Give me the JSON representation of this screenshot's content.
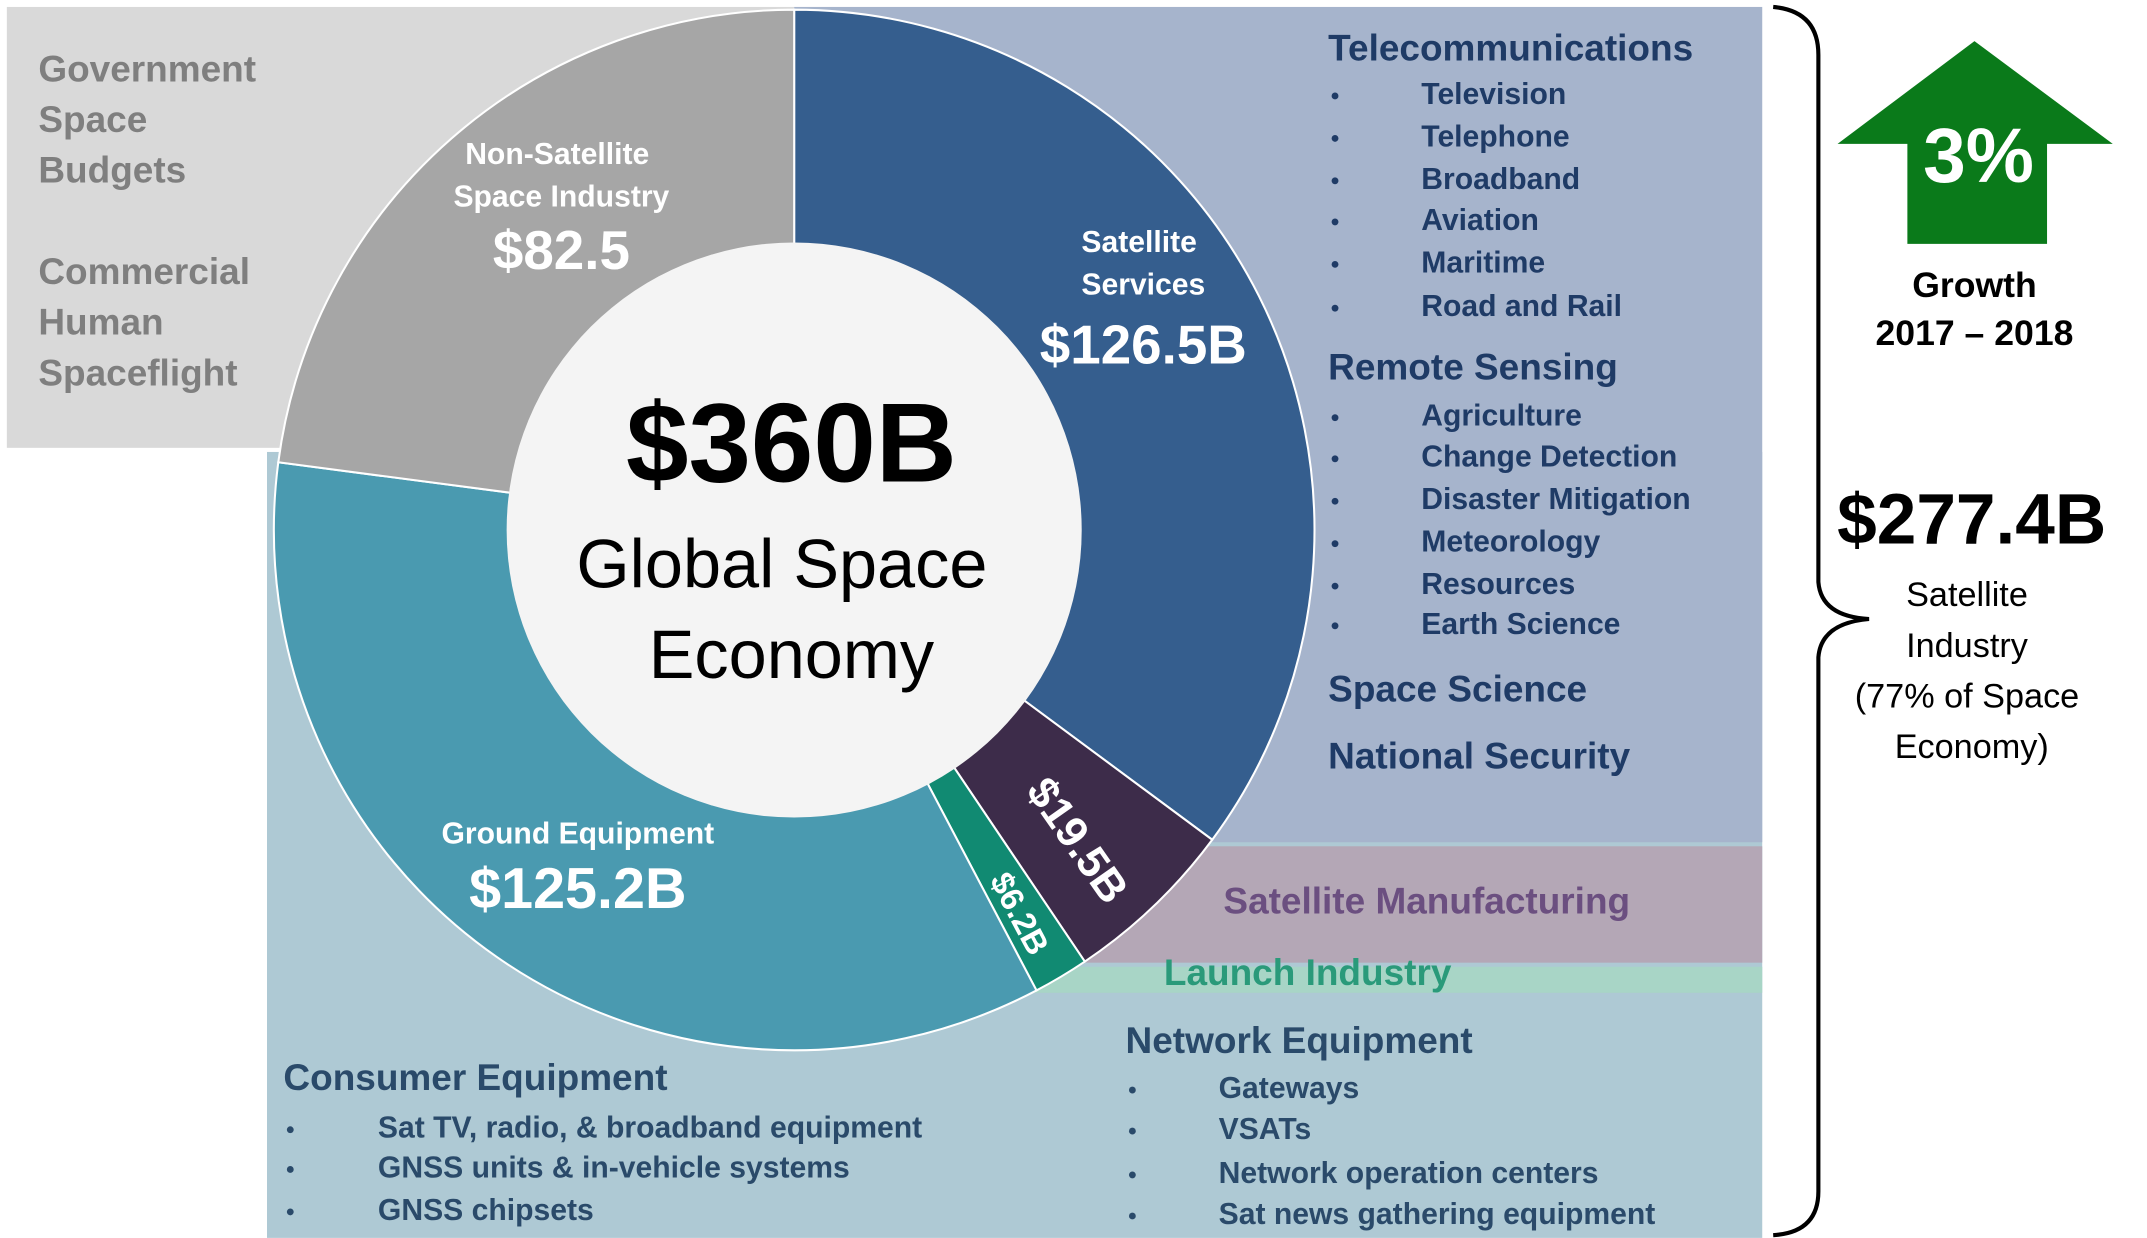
{
  "chart_data": {
    "type": "pie",
    "center_value": "$360B",
    "center_label": "Global Space Economy",
    "categories": [
      "Satellite Services",
      "Satellite Manufacturing",
      "Launch Industry",
      "Ground Equipment",
      "Non-Satellite Space Industry"
    ],
    "values": [
      126.5,
      19.5,
      6.2,
      125.2,
      82.5
    ],
    "value_labels": [
      "$126.5B",
      "$19.5B",
      "$6.2B",
      "$125.2B",
      "$82.5"
    ],
    "colors": [
      "#355e8e",
      "#3d2c4a",
      "#118a72",
      "#4a9ab0",
      "#a6a6a6"
    ],
    "non_satellite_notes": [
      "Government Space Budgets",
      "Commercial Human Spaceflight"
    ],
    "service_groups": [
      {
        "heading": "Telecommunications",
        "items": [
          "Television",
          "Telephone",
          "Broadband",
          "Aviation",
          "Maritime",
          "Road and Rail"
        ]
      },
      {
        "heading": "Remote Sensing",
        "items": [
          "Agriculture",
          "Change Detection",
          "Disaster Mitigation",
          "Meteorology",
          "Resources",
          "Earth Science"
        ]
      },
      {
        "heading": "Space Science",
        "items": []
      },
      {
        "heading": "National Security",
        "items": []
      }
    ],
    "ground_groups": [
      {
        "heading": "Consumer Equipment",
        "items": [
          "Sat TV, radio, & broadband equipment",
          "GNSS units & in-vehicle systems",
          "GNSS chipsets"
        ]
      },
      {
        "heading": "Network Equipment",
        "items": [
          "Gateways",
          "VSATs",
          "Network operation centers",
          "Sat news gathering equipment"
        ]
      }
    ],
    "growth_value": "3%",
    "growth_label": [
      "Growth",
      "2017 – 2018"
    ],
    "satellite_total": "$277.4B",
    "satellite_label": "Satellite Industry (77% of Space Economy)"
  }
}
